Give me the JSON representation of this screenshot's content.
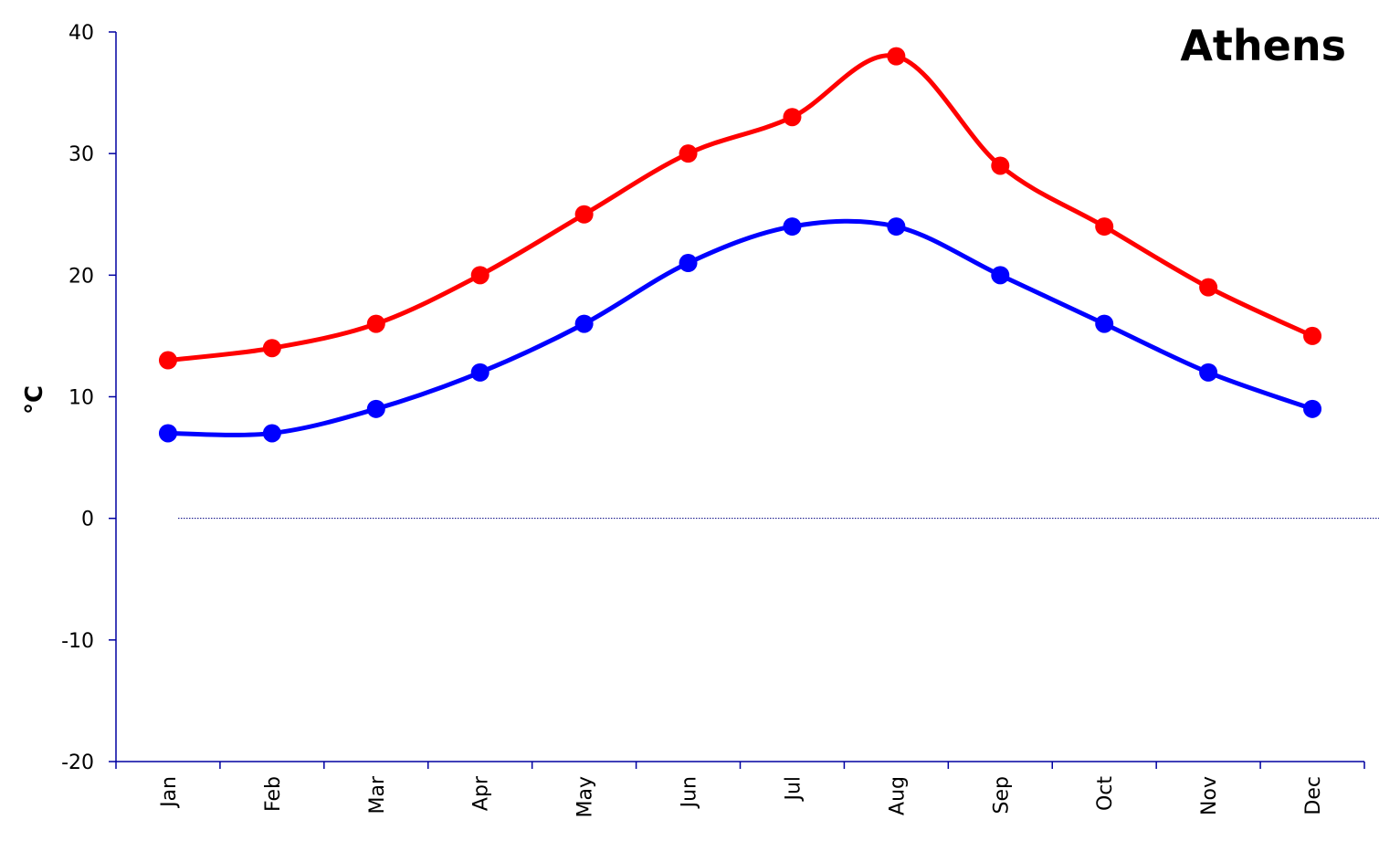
{
  "chart_data": {
    "type": "line",
    "title": "Athens",
    "xlabel": "",
    "ylabel": "°C",
    "categories": [
      "Jan",
      "Feb",
      "Mar",
      "Apr",
      "May",
      "Jun",
      "Jul",
      "Aug",
      "Sep",
      "Oct",
      "Nov",
      "Dec"
    ],
    "ylim": [
      -20,
      40
    ],
    "yticks": [
      -20,
      -10,
      0,
      10,
      20,
      30,
      40
    ],
    "grid": false,
    "zero_line": true,
    "smooth": true,
    "series": [
      {
        "color": "#ff0000",
        "values": [
          13,
          14,
          16,
          20,
          25,
          30,
          33,
          38,
          29,
          24,
          19,
          15
        ]
      },
      {
        "color": "#0000ff",
        "values": [
          7,
          7,
          9,
          12,
          16,
          21,
          24,
          24,
          20,
          16,
          12,
          9
        ]
      }
    ]
  }
}
